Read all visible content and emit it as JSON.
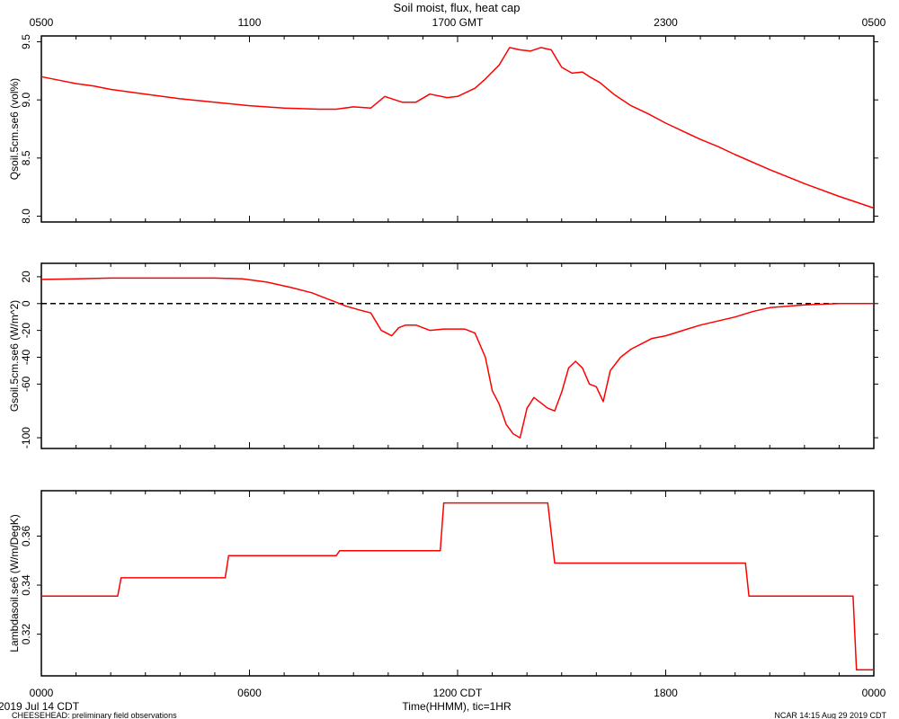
{
  "title": "Soil moist, flux, heat cap",
  "footer": {
    "date_label": "2019 Jul 14 CDT",
    "project_label": "CHEESEHEAD: preliminary field observations",
    "credit_label": "NCAR 14:15 Aug 29 2019 CDT"
  },
  "top_axis": {
    "tick_labels": [
      "0500",
      "1100",
      "1700 GMT",
      "2300",
      "0500"
    ]
  },
  "bottom_axis": {
    "tick_labels": [
      "0000",
      "0600",
      "1200 CDT",
      "1800",
      "0000"
    ],
    "label": "Time(HHMM), tic=1HR"
  },
  "colors": {
    "series": "#ff0000",
    "axes": "#000000",
    "zero_line": "#000000"
  },
  "chart_data": [
    {
      "type": "line",
      "ylabel": "Qsoil.5cm.se6 (vol%)",
      "ylim": [
        7.95,
        9.55
      ],
      "yticks": [
        8.0,
        8.5,
        9.0,
        9.5
      ],
      "ytick_labels": [
        "8.0",
        "8.5",
        "9.0",
        "9.5"
      ],
      "xlim": [
        0,
        24
      ],
      "series": [
        {
          "x": [
            0,
            0.5,
            1,
            1.5,
            2,
            3,
            4,
            5,
            6,
            7,
            8,
            8.5,
            9,
            9.5,
            9.9,
            10.4,
            10.8,
            11.2,
            11.7,
            12,
            12.5,
            12.8,
            13.2,
            13.5,
            13.8,
            14.1,
            14.4,
            14.7,
            15,
            15.3,
            15.6,
            15.8,
            16.1,
            16.5,
            17,
            17.5,
            18,
            18.5,
            19,
            19.5,
            20,
            21,
            22,
            23,
            24
          ],
          "y": [
            9.2,
            9.17,
            9.14,
            9.12,
            9.09,
            9.05,
            9.01,
            8.98,
            8.95,
            8.93,
            8.92,
            8.92,
            8.94,
            8.93,
            9.03,
            8.98,
            8.98,
            9.05,
            9.02,
            9.03,
            9.1,
            9.18,
            9.3,
            9.45,
            9.43,
            9.42,
            9.45,
            9.43,
            9.28,
            9.23,
            9.24,
            9.2,
            9.15,
            9.05,
            8.95,
            8.88,
            8.8,
            8.73,
            8.66,
            8.6,
            8.53,
            8.4,
            8.28,
            8.17,
            8.07
          ]
        }
      ]
    },
    {
      "type": "line",
      "ylabel": "Gsoil.5cm.se6 (W/m^2)",
      "ylim": [
        -108,
        30
      ],
      "yticks": [
        20,
        0,
        -20,
        -40,
        -60,
        -100
      ],
      "ytick_labels": [
        "20",
        "0",
        "-20",
        "-40",
        "-60",
        "-100"
      ],
      "zero_line": true,
      "xlim": [
        0,
        24
      ],
      "series": [
        {
          "x": [
            0,
            1,
            2,
            3,
            4,
            5,
            5.8,
            6.5,
            7.2,
            7.8,
            8.3,
            8.8,
            9.2,
            9.5,
            9.8,
            10.1,
            10.3,
            10.5,
            10.8,
            11.2,
            11.6,
            11.9,
            12.2,
            12.5,
            12.8,
            13.0,
            13.2,
            13.4,
            13.6,
            13.8,
            14.0,
            14.2,
            14.4,
            14.6,
            14.8,
            15.0,
            15.2,
            15.4,
            15.6,
            15.8,
            16.0,
            16.2,
            16.4,
            16.7,
            17.0,
            17.3,
            17.6,
            18.0,
            18.5,
            19,
            19.5,
            20,
            20.5,
            21,
            22,
            23,
            24
          ],
          "y": [
            18,
            18.5,
            19,
            19,
            19,
            19,
            18.5,
            16,
            12,
            8,
            3,
            -2,
            -5,
            -7,
            -20,
            -24,
            -18,
            -16,
            -16,
            -20,
            -19,
            -19,
            -19,
            -22,
            -40,
            -65,
            -75,
            -90,
            -97,
            -100,
            -78,
            -70,
            -74,
            -78,
            -80,
            -66,
            -48,
            -43,
            -48,
            -60,
            -62,
            -73,
            -50,
            -40,
            -34,
            -30,
            -26,
            -24,
            -20,
            -16,
            -13,
            -10,
            -6,
            -3,
            -1,
            0,
            0
          ]
        }
      ]
    },
    {
      "type": "line",
      "ylabel": "Lambdasoil.se6 (W/m/DegK)",
      "ylim": [
        0.303,
        0.3785
      ],
      "yticks": [
        0.32,
        0.34,
        0.36
      ],
      "ytick_labels": [
        "0.32",
        "0.34",
        "0.36"
      ],
      "xlim": [
        0,
        24
      ],
      "series": [
        {
          "x": [
            0,
            2.2,
            2.3,
            5.3,
            5.4,
            8.5,
            8.6,
            11.5,
            11.6,
            14.6,
            14.8,
            20.3,
            20.4,
            23.4,
            23.5,
            24
          ],
          "y": [
            0.3355,
            0.3355,
            0.343,
            0.343,
            0.352,
            0.352,
            0.354,
            0.354,
            0.3735,
            0.3735,
            0.349,
            0.349,
            0.3355,
            0.3355,
            0.3055,
            0.3055
          ]
        }
      ]
    }
  ]
}
